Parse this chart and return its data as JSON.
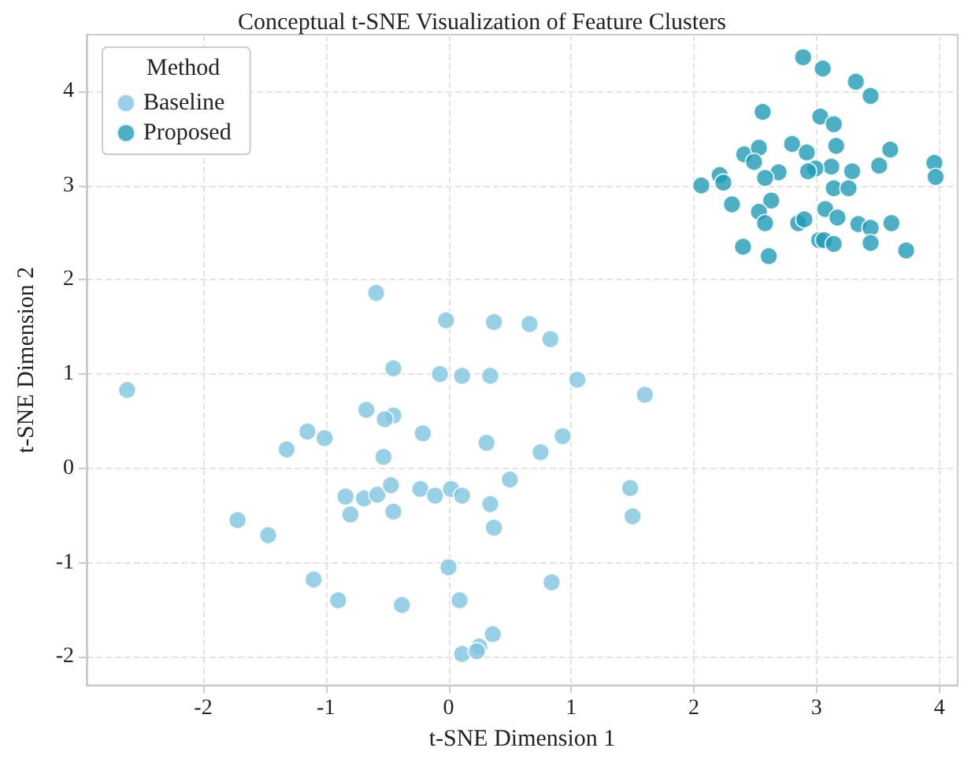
{
  "chart_data": {
    "type": "scatter",
    "title": "Conceptual t-SNE Visualization of Feature Clusters",
    "xlabel": "t-SNE Dimension 1",
    "ylabel": "t-SNE Dimension 2",
    "legend_title": "Method",
    "xlim": [
      -2.95,
      4.15
    ],
    "ylim": [
      -2.3,
      4.6
    ],
    "xticks": [
      -2,
      -1,
      0,
      1,
      2,
      3,
      4
    ],
    "yticks": [
      -2,
      -1,
      0,
      1,
      2,
      3,
      4
    ],
    "grid": true,
    "legend": "top left",
    "marker": "circle",
    "series": [
      {
        "name": "Baseline",
        "color": "#7ec4e0",
        "x": [
          -2.62,
          -0.59,
          -0.02,
          0.37,
          0.66,
          0.83,
          -0.45,
          -0.07,
          0.11,
          0.34,
          1.05,
          1.6,
          -0.67,
          -0.45,
          -0.52,
          -1.15,
          -1.01,
          -1.32,
          -0.21,
          -0.53,
          0.31,
          0.75,
          0.93,
          -0.84,
          -0.69,
          -0.58,
          -0.47,
          -0.8,
          -0.45,
          -0.23,
          -0.11,
          0.02,
          0.11,
          -1.72,
          -1.47,
          -1.1,
          -0.9,
          -0.38,
          0.0,
          0.09,
          0.11,
          0.5,
          0.34,
          0.37,
          1.48,
          1.5,
          0.84,
          0.36,
          0.25,
          0.23
        ],
        "values": [
          0.83,
          1.86,
          1.57,
          1.55,
          1.53,
          1.37,
          1.06,
          1.0,
          0.98,
          0.98,
          0.94,
          0.78,
          0.62,
          0.56,
          0.52,
          0.39,
          0.32,
          0.2,
          0.37,
          0.12,
          0.27,
          0.17,
          0.34,
          -0.3,
          -0.32,
          -0.28,
          -0.18,
          -0.49,
          -0.46,
          -0.22,
          -0.29,
          -0.22,
          -0.29,
          -0.55,
          -0.71,
          -1.18,
          -1.4,
          -1.45,
          -1.05,
          -1.4,
          -1.97,
          -0.12,
          -0.38,
          -0.63,
          -0.21,
          -0.51,
          -1.21,
          -1.76,
          -1.89,
          -1.94
        ]
      },
      {
        "name": "Proposed",
        "color": "#1f9bb5",
        "x": [
          2.89,
          3.05,
          3.32,
          3.44,
          2.56,
          3.03,
          3.14,
          2.41,
          2.53,
          2.49,
          2.8,
          2.92,
          3.16,
          3.6,
          3.96,
          3.97,
          3.51,
          3.29,
          3.12,
          2.99,
          2.93,
          2.69,
          2.58,
          2.21,
          2.24,
          2.06,
          3.14,
          3.26,
          2.31,
          2.63,
          2.53,
          2.58,
          3.07,
          3.17,
          2.85,
          2.9,
          3.34,
          3.44,
          3.61,
          3.02,
          3.06,
          3.14,
          3.44,
          3.73,
          2.4,
          2.61
        ],
        "values": [
          4.36,
          4.24,
          4.1,
          3.95,
          3.78,
          3.73,
          3.65,
          3.33,
          3.4,
          3.25,
          3.44,
          3.35,
          3.42,
          3.38,
          3.24,
          3.09,
          3.21,
          3.15,
          3.2,
          3.18,
          3.15,
          3.14,
          3.08,
          3.11,
          3.03,
          3.0,
          2.97,
          2.97,
          2.8,
          2.84,
          2.72,
          2.6,
          2.75,
          2.66,
          2.6,
          2.64,
          2.59,
          2.55,
          2.6,
          2.42,
          2.42,
          2.38,
          2.39,
          2.31,
          2.35,
          2.25
        ]
      }
    ]
  }
}
